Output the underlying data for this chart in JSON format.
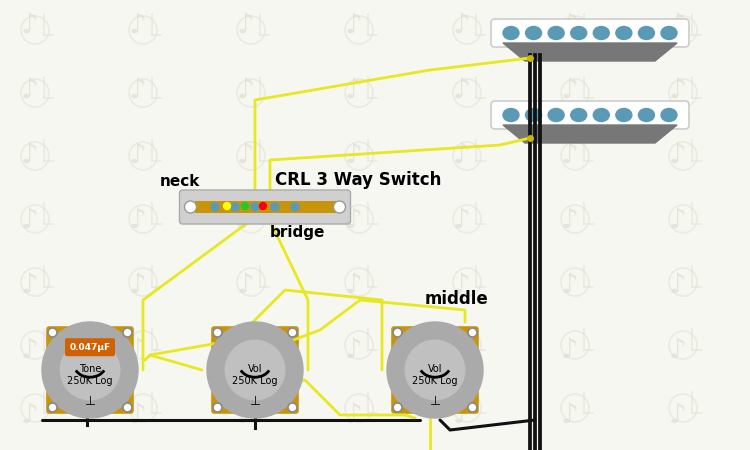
{
  "bg_color": "#f7f7f2",
  "watermark_color": "#e5e5d5",
  "dot_color": "#5b9ab5",
  "wire_yellow": "#e8e820",
  "wire_black": "#111111",
  "pot_body": "#aaaaaa",
  "pot_base": "#c8950a",
  "cap_color": "#d06000",
  "switch_base": "#c8950a",
  "switch_body": "#cccccc",
  "switch_label": "CRL 3 Way Switch",
  "neck_label": "neck",
  "bridge_label": "bridge",
  "middle_label": "middle",
  "tone_label": "Tone\n250K Log",
  "vol_label": "Vol\n250K Log",
  "cap_label": "0.047μF",
  "ground_symbol": "⊥",
  "pickup_blade": "#666666",
  "pickup_body": "#ffffff",
  "pickup_border": "#cccccc"
}
